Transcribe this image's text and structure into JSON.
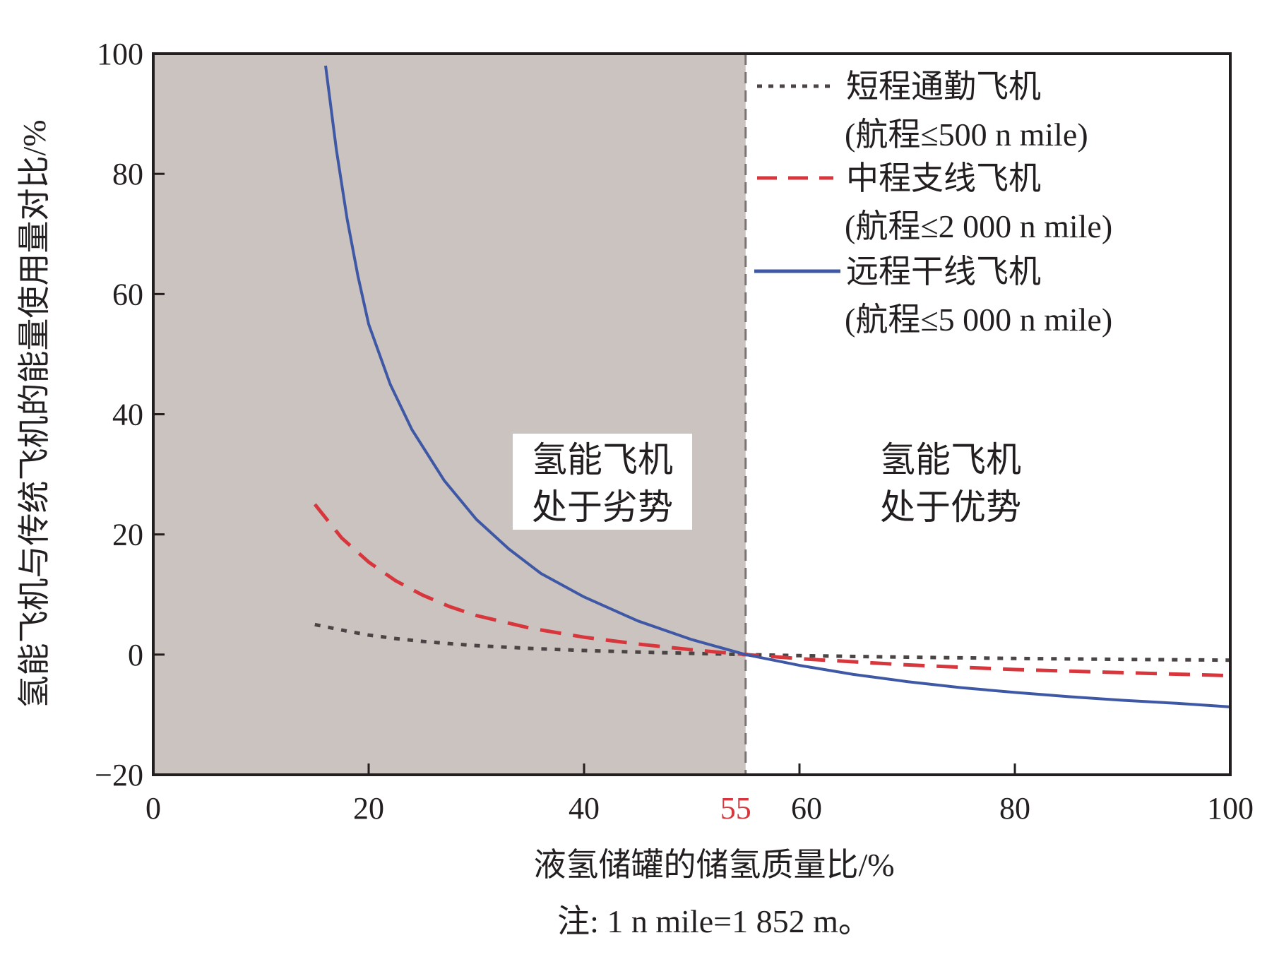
{
  "chart_data": {
    "type": "line",
    "xlabel": "液氢储罐的储氢质量比/%",
    "ylabel": "氢能飞机与传统飞机的能量使用量对比/%",
    "xlim": [
      0,
      100
    ],
    "ylim": [
      -20,
      100
    ],
    "x_ticks": [
      0,
      20,
      40,
      55,
      60,
      80,
      100
    ],
    "y_ticks": [
      100,
      80,
      60,
      40,
      20,
      0,
      -20
    ],
    "x_tick_labels": [
      "0",
      "20",
      "40",
      "55",
      "60",
      "80",
      "100"
    ],
    "y_tick_labels": [
      "100",
      "80",
      "60",
      "40",
      "20",
      "0",
      "−20"
    ],
    "highlight_tick": {
      "value": 55,
      "color": "#d7373c"
    },
    "threshold_x": 55,
    "shaded_region": {
      "x_from": 0,
      "x_to": 55,
      "color": "#cbc3c0"
    },
    "region_labels": [
      {
        "lines": [
          "氢能飞机",
          "处于劣势"
        ]
      },
      {
        "lines": [
          "氢能飞机",
          "处于优势"
        ]
      }
    ],
    "grid": false,
    "legend_position": "top-right",
    "series": [
      {
        "name": "短程通勤飞机",
        "name_line2": "(航程≤500 n mile)",
        "style": "dotted",
        "color": "#4a4544",
        "x": [
          15,
          17.5,
          20,
          22.5,
          25,
          27.5,
          30,
          35,
          40,
          45,
          50,
          55,
          60,
          70,
          80,
          90,
          100
        ],
        "y": [
          5,
          4.08,
          3.25,
          2.67,
          2.2,
          1.82,
          1.5,
          1.03,
          0.69,
          0.42,
          0.2,
          0,
          -0.17,
          -0.43,
          -0.64,
          -0.8,
          -0.93
        ]
      },
      {
        "name": "中程支线飞机",
        "name_line2": "(航程≤2 000 n mile)",
        "style": "dashed",
        "color": "#d7373c",
        "x": [
          15,
          17.5,
          20,
          22.5,
          25,
          27.5,
          30,
          35,
          40,
          45,
          50,
          55,
          60,
          70,
          80,
          90,
          100
        ],
        "y": [
          25,
          19.4,
          15.4,
          12.3,
          9.9,
          8.0,
          6.5,
          4.4,
          2.9,
          1.75,
          0.8,
          0,
          -0.68,
          -1.71,
          -2.49,
          -3.0,
          -3.5
        ]
      },
      {
        "name": "远程干线飞机",
        "name_line2": "(航程≤5 000 n mile)",
        "style": "solid",
        "color": "#3e58a5",
        "x": [
          16,
          17,
          18,
          19,
          20,
          22,
          24,
          27,
          30,
          33,
          36,
          40,
          45,
          50,
          55,
          60,
          65,
          70,
          75,
          80,
          85,
          90,
          95,
          100
        ],
        "y": [
          98,
          84,
          72.5,
          63,
          55,
          45,
          37.5,
          29,
          22.5,
          17.6,
          13.5,
          9.6,
          5.6,
          2.5,
          0,
          -1.8,
          -3.3,
          -4.5,
          -5.5,
          -6.3,
          -7.0,
          -7.6,
          -8.1,
          -8.7
        ]
      }
    ]
  },
  "note": "注: 1 n mile=1 852 m。"
}
